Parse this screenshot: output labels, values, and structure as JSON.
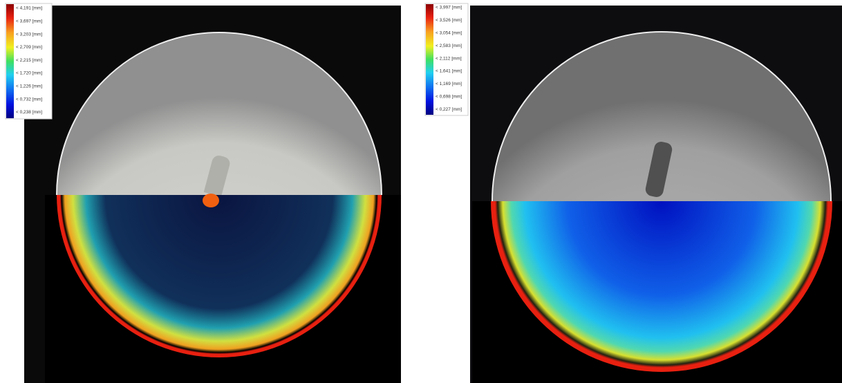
{
  "panels": [
    {
      "legend": {
        "labels": [
          "< 4,191 [mm]",
          "< 3,697 [mm]",
          "< 3,203 [mm]",
          "< 2,709 [mm]",
          "< 2,215 [mm]",
          "< 1,720 [mm]",
          "< 1,226 [mm]",
          "< 0,732 [mm]",
          "< 0,238 [mm]"
        ]
      }
    },
    {
      "legend": {
        "labels": [
          "< 3,997 [mm]",
          "< 3,526 [mm]",
          "< 3,054 [mm]",
          "< 2,583 [mm]",
          "< 2,112 [mm]",
          "< 1,641 [mm]",
          "< 1,169 [mm]",
          "< 0,698 [mm]",
          "< 0,227 [mm]"
        ]
      }
    }
  ]
}
